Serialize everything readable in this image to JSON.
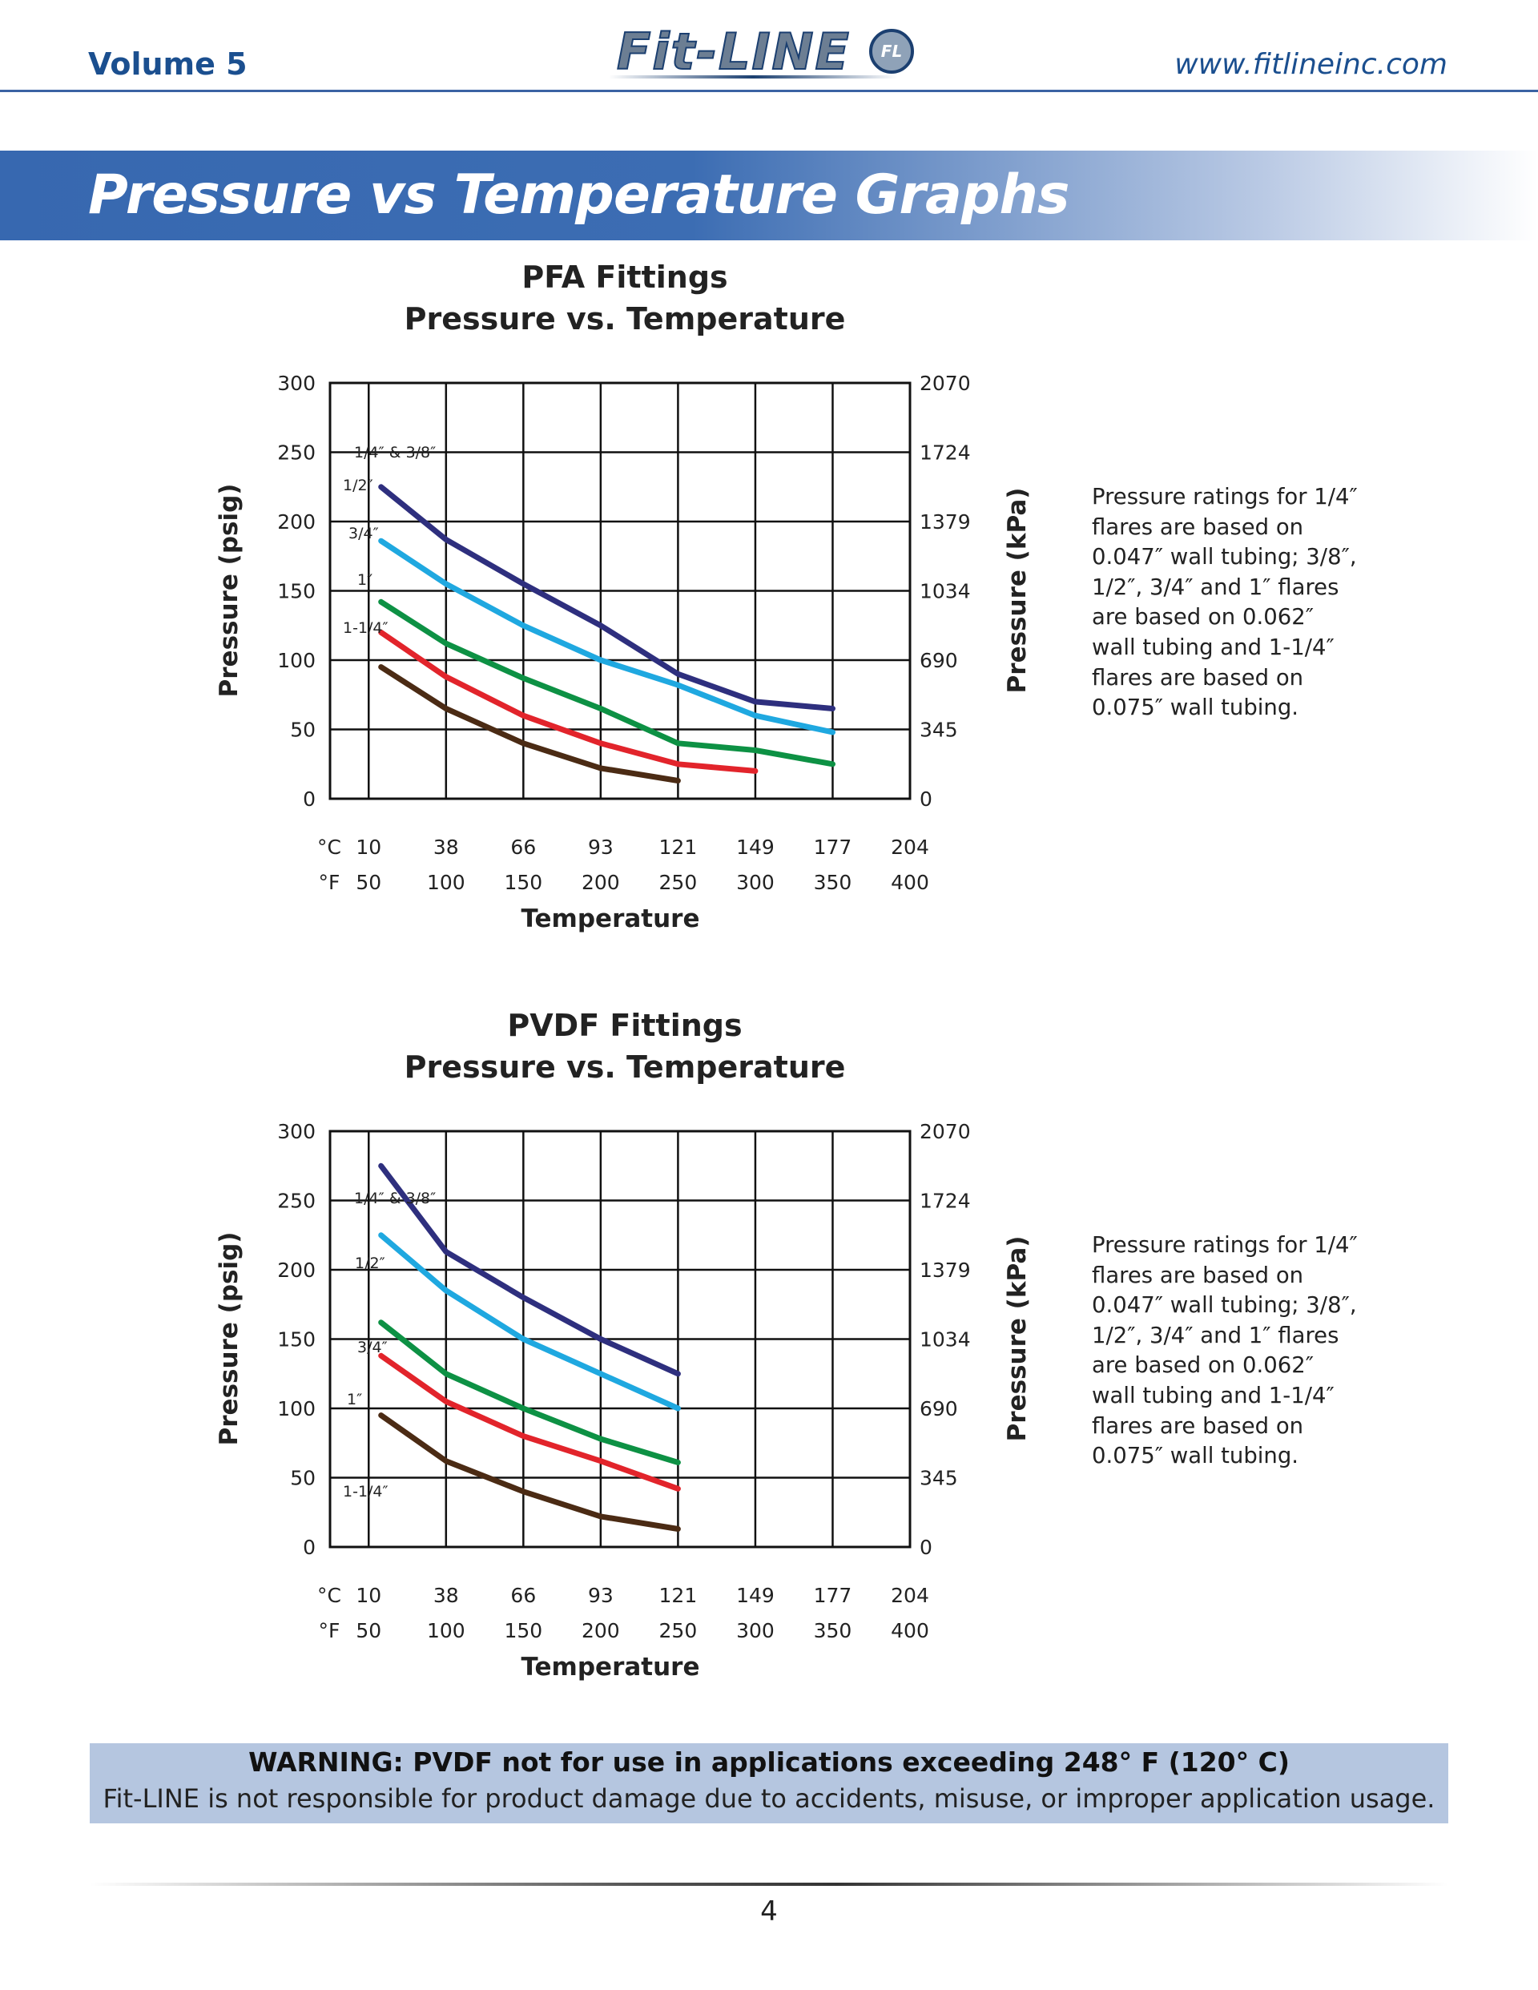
{
  "header": {
    "volume": "Volume 5",
    "logo_text": "Fit-LINE",
    "logo_badge": "FL",
    "url": "www.fitlineinc.com"
  },
  "banner": {
    "title": "Pressure vs Temperature Graphs"
  },
  "charts": [
    {
      "title_line1": "PFA Fittings",
      "title_line2": "Pressure vs. Temperature",
      "note": "Pressure ratings for 1/4″ flares are based on 0.047″ wall tubing; 3/8″, 1/2″, 3/4″ and 1″ flares are based on 0.062″ wall tubing and 1-1/4″ flares are based on 0.075″ wall tubing."
    },
    {
      "title_line1": "PVDF Fittings",
      "title_line2": "Pressure vs. Temperature",
      "note": "Pressure ratings for 1/4″ flares are based on 0.047″ wall tubing; 3/8″, 1/2″, 3/4″ and 1″ flares are based on 0.062″ wall tubing and 1-1/4″ flares are based on 0.075″ wall tubing."
    }
  ],
  "chart_data": [
    {
      "type": "line",
      "title": "PFA Fittings Pressure vs. Temperature",
      "xlabel": "Temperature",
      "ylabel": "Pressure (psig)",
      "y2label": "Pressure (kPa)",
      "xlim": [
        25,
        400
      ],
      "ylim": [
        0,
        300
      ],
      "x_unit_f": "°F",
      "x_unit_c": "°C",
      "x_ticks_f": [
        "50",
        "100",
        "150",
        "200",
        "250",
        "300",
        "350",
        "400"
      ],
      "x_ticks_c": [
        "10",
        "38",
        "66",
        "93",
        "121",
        "149",
        "177",
        "204"
      ],
      "y_ticks": [
        "0",
        "50",
        "100",
        "150",
        "200",
        "250",
        "300"
      ],
      "y2_ticks": [
        "0",
        "345",
        "690",
        "1034",
        "1379",
        "1724",
        "2070"
      ],
      "grid": true,
      "series": [
        {
          "name": "1/4″ & 3/8″",
          "color": "#2e2f7e",
          "points": [
            [
              58,
              225
            ],
            [
              100,
              187
            ],
            [
              150,
              155
            ],
            [
              200,
              125
            ],
            [
              250,
              90
            ],
            [
              300,
              70
            ],
            [
              350,
              65
            ]
          ]
        },
        {
          "name": "1/2″",
          "color": "#1fa8e0",
          "points": [
            [
              58,
              186
            ],
            [
              100,
              155
            ],
            [
              150,
              125
            ],
            [
              200,
              100
            ],
            [
              250,
              82
            ],
            [
              300,
              60
            ],
            [
              350,
              48
            ]
          ]
        },
        {
          "name": "3/4″",
          "color": "#0d9144",
          "points": [
            [
              58,
              142
            ],
            [
              100,
              112
            ],
            [
              150,
              87
            ],
            [
              200,
              65
            ],
            [
              250,
              40
            ],
            [
              300,
              35
            ],
            [
              350,
              25
            ]
          ]
        },
        {
          "name": "1″",
          "color": "#e2242b",
          "points": [
            [
              58,
              120
            ],
            [
              100,
              88
            ],
            [
              150,
              60
            ],
            [
              200,
              40
            ],
            [
              250,
              25
            ],
            [
              300,
              20
            ]
          ]
        },
        {
          "name": "1-1/4″",
          "color": "#4b2b14",
          "points": [
            [
              58,
              95
            ],
            [
              100,
              65
            ],
            [
              150,
              40
            ],
            [
              200,
              22
            ],
            [
              250,
              13
            ]
          ]
        }
      ]
    },
    {
      "type": "line",
      "title": "PVDF Fittings Pressure vs. Temperature",
      "xlabel": "Temperature",
      "ylabel": "Pressure (psig)",
      "y2label": "Pressure (kPa)",
      "xlim": [
        25,
        400
      ],
      "ylim": [
        0,
        300
      ],
      "x_unit_f": "°F",
      "x_unit_c": "°C",
      "x_ticks_f": [
        "50",
        "100",
        "150",
        "200",
        "250",
        "300",
        "350",
        "400"
      ],
      "x_ticks_c": [
        "10",
        "38",
        "66",
        "93",
        "121",
        "149",
        "177",
        "204"
      ],
      "y_ticks": [
        "0",
        "50",
        "100",
        "150",
        "200",
        "250",
        "300"
      ],
      "y2_ticks": [
        "0",
        "345",
        "690",
        "1034",
        "1379",
        "1724",
        "2070"
      ],
      "grid": true,
      "series": [
        {
          "name": "1/4″ & 3/8″",
          "color": "#2e2f7e",
          "points": [
            [
              58,
              275
            ],
            [
              100,
              213
            ],
            [
              150,
              180
            ],
            [
              200,
              150
            ],
            [
              250,
              125
            ]
          ]
        },
        {
          "name": "1/2″",
          "color": "#1fa8e0",
          "points": [
            [
              58,
              225
            ],
            [
              100,
              185
            ],
            [
              150,
              150
            ],
            [
              200,
              125
            ],
            [
              250,
              100
            ]
          ]
        },
        {
          "name": "3/4″",
          "color": "#0d9144",
          "points": [
            [
              58,
              162
            ],
            [
              100,
              125
            ],
            [
              150,
              100
            ],
            [
              200,
              78
            ],
            [
              250,
              61
            ]
          ]
        },
        {
          "name": "1″",
          "color": "#e2242b",
          "points": [
            [
              58,
              138
            ],
            [
              100,
              105
            ],
            [
              150,
              80
            ],
            [
              200,
              62
            ],
            [
              250,
              42
            ]
          ]
        },
        {
          "name": "1-1/4″",
          "color": "#4b2b14",
          "points": [
            [
              58,
              95
            ],
            [
              100,
              62
            ],
            [
              150,
              40
            ],
            [
              200,
              22
            ],
            [
              250,
              13
            ]
          ]
        }
      ]
    }
  ],
  "warning": {
    "title": "WARNING: PVDF not for use in applications exceeding 248° F (120° C)",
    "text": "Fit-LINE is not responsible for product damage due to accidents, misuse, or improper application usage."
  },
  "footer": {
    "page_number": "4"
  }
}
